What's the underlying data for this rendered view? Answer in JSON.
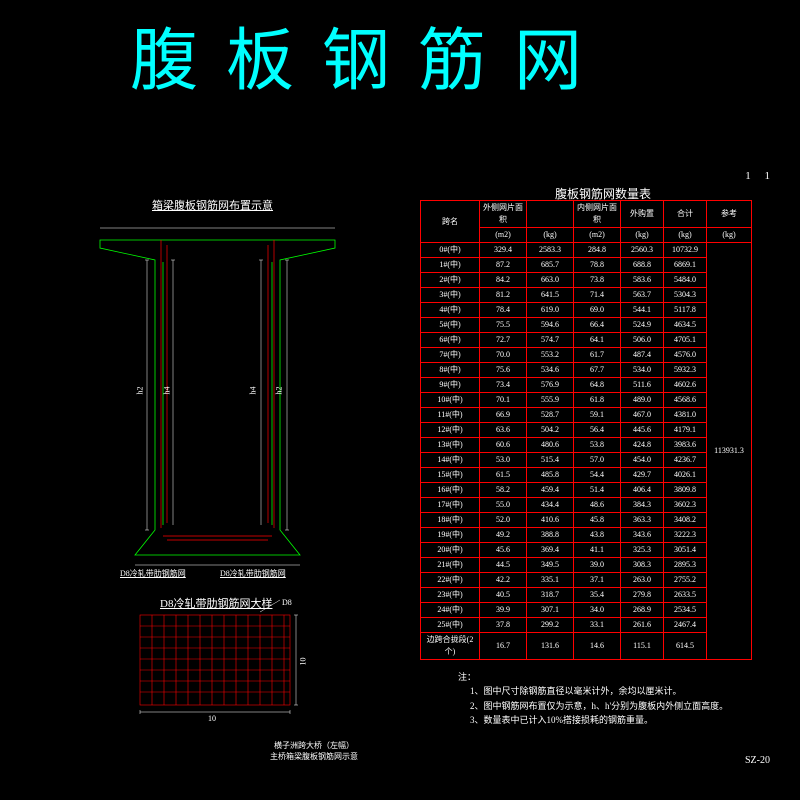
{
  "colors": {
    "bg": "#000000",
    "accent": "#00ffff",
    "line_red": "#ff0000",
    "line_green": "#00ff00",
    "text": "#ffffff"
  },
  "title": "腹板钢筋网",
  "section": {
    "title": "箱梁腹板钢筋网布置示意",
    "labels": {
      "left_mesh": "D8冷轧带肋钢筋网",
      "right_mesh": "D8冷轧带肋钢筋网",
      "h2": "h2",
      "h4": "h4"
    }
  },
  "mesh": {
    "title": "D8冷轧带肋钢筋网大样",
    "dim10": "10",
    "label": "D8"
  },
  "table": {
    "title": "腹板钢筋网数量表",
    "headers": {
      "c0": "跨名",
      "c1": "外侧网片面积",
      "c2": "",
      "c3": "内侧网片面积",
      "c4": "外购置",
      "c5": "合计",
      "c6": "参考",
      "u1": "(m2)",
      "u2": "(kg)",
      "u3": "(m2)",
      "u4": "(kg)",
      "u5": "(kg)",
      "u6": "(kg)"
    },
    "rows": [
      [
        "0#(中)",
        "329.4",
        "2583.3",
        "284.8",
        "2560.3",
        "10732.9"
      ],
      [
        "1#(中)",
        "87.2",
        "685.7",
        "78.8",
        "688.8",
        "6869.1"
      ],
      [
        "2#(中)",
        "84.2",
        "663.0",
        "73.8",
        "583.6",
        "5484.0"
      ],
      [
        "3#(中)",
        "81.2",
        "641.5",
        "71.4",
        "563.7",
        "5304.3"
      ],
      [
        "4#(中)",
        "78.4",
        "619.0",
        "69.0",
        "544.1",
        "5117.8"
      ],
      [
        "5#(中)",
        "75.5",
        "594.6",
        "66.4",
        "524.9",
        "4634.5"
      ],
      [
        "6#(中)",
        "72.7",
        "574.7",
        "64.1",
        "506.0",
        "4705.1"
      ],
      [
        "7#(中)",
        "70.0",
        "553.2",
        "61.7",
        "487.4",
        "4576.0"
      ],
      [
        "8#(中)",
        "75.6",
        "534.6",
        "67.7",
        "534.0",
        "5932.3"
      ],
      [
        "9#(中)",
        "73.4",
        "576.9",
        "64.8",
        "511.6",
        "4602.6"
      ],
      [
        "10#(中)",
        "70.1",
        "555.9",
        "61.8",
        "489.0",
        "4568.6"
      ],
      [
        "11#(中)",
        "66.9",
        "528.7",
        "59.1",
        "467.0",
        "4381.0"
      ],
      [
        "12#(中)",
        "63.6",
        "504.2",
        "56.4",
        "445.6",
        "4179.1"
      ],
      [
        "13#(中)",
        "60.6",
        "480.6",
        "53.8",
        "424.8",
        "3983.6"
      ],
      [
        "14#(中)",
        "53.0",
        "515.4",
        "57.0",
        "454.0",
        "4236.7"
      ],
      [
        "15#(中)",
        "61.5",
        "485.8",
        "54.4",
        "429.7",
        "4026.1"
      ],
      [
        "16#(中)",
        "58.2",
        "459.4",
        "51.4",
        "406.4",
        "3809.8"
      ],
      [
        "17#(中)",
        "55.0",
        "434.4",
        "48.6",
        "384.3",
        "3602.3"
      ],
      [
        "18#(中)",
        "52.0",
        "410.6",
        "45.8",
        "363.3",
        "3408.2"
      ],
      [
        "19#(中)",
        "49.2",
        "388.8",
        "43.8",
        "343.6",
        "3222.3"
      ],
      [
        "20#(中)",
        "45.6",
        "369.4",
        "41.1",
        "325.3",
        "3051.4"
      ],
      [
        "21#(中)",
        "44.5",
        "349.5",
        "39.0",
        "308.3",
        "2895.3"
      ],
      [
        "22#(中)",
        "42.2",
        "335.1",
        "37.1",
        "263.0",
        "2755.2"
      ],
      [
        "23#(中)",
        "40.5",
        "318.7",
        "35.4",
        "279.8",
        "2633.5"
      ],
      [
        "24#(中)",
        "39.9",
        "307.1",
        "34.0",
        "268.9",
        "2534.5"
      ],
      [
        "25#(中)",
        "37.8",
        "299.2",
        "33.1",
        "261.6",
        "2467.4"
      ],
      [
        "边跨合拢段(2个)",
        "16.7",
        "131.6",
        "14.6",
        "115.1",
        "614.5"
      ]
    ],
    "total": "113931.3"
  },
  "notes": {
    "h": "注：",
    "n1": "1、图中尺寸除钢筋直径以毫米计外，余均以厘米计。",
    "n2": "2、图中钢筋网布置仅为示意，h、h'分别为腹板内外侧立面高度。",
    "n3": "3、数量表中已计入10%搭接损耗的钢筋重量。"
  },
  "footer": {
    "l1": "横子洲跨大桥（左幅）",
    "l2": "主桥箱梁腹板钢筋网示意"
  },
  "drawing_no": "SZ-20",
  "page": {
    "a": "1",
    "b": "1"
  }
}
